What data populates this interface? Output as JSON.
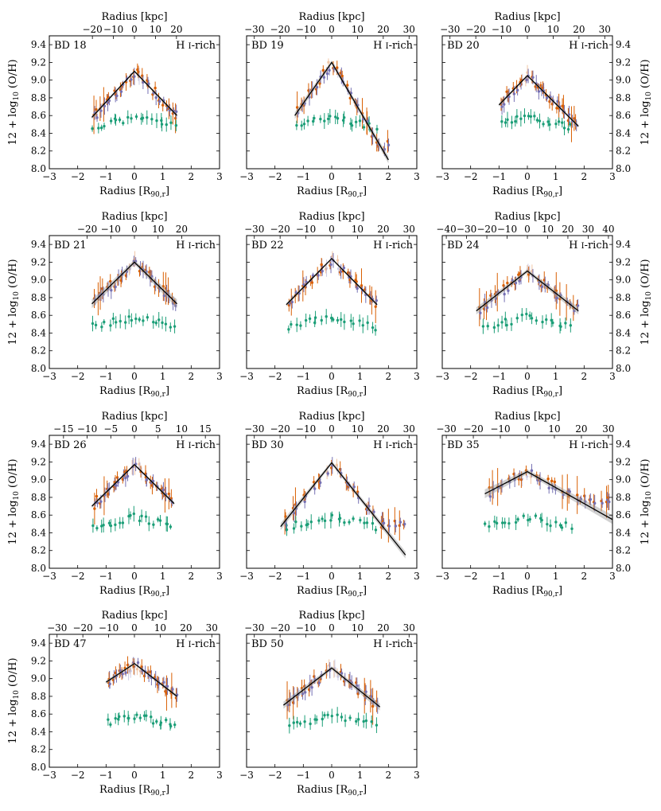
{
  "figure": {
    "top_axis_label": "Radius [kpc]",
    "bottom_axis_label": "Radius [R90,r]",
    "y_axis_label": "12 + log10 (O/H)",
    "hi_label": "H I-rich",
    "y_ticks": [
      8.0,
      8.2,
      8.4,
      8.6,
      8.8,
      9.0,
      9.2,
      9.4
    ],
    "x_ticks": [
      -3,
      -2,
      -1,
      0,
      1,
      2,
      3
    ],
    "colors": {
      "orange": "#d95f02",
      "purple": "#7570b3",
      "green": "#1b9e77",
      "fit": "#000000",
      "band": "#999999"
    }
  },
  "chart_data": [
    {
      "type": "scatter",
      "title": "BD 18",
      "tag": "H I-rich",
      "xlim": [
        -3,
        3
      ],
      "ylim": [
        8.0,
        9.5
      ],
      "kpc_per_unit": 13.5,
      "kpc_ticks": [
        -20,
        -10,
        0,
        10,
        20
      ],
      "fit": {
        "x": [
          -1.5,
          0,
          1.5
        ],
        "y": [
          8.58,
          9.1,
          8.6
        ]
      },
      "band": 0.01
    },
    {
      "type": "scatter",
      "title": "BD 19",
      "tag": "H I-rich",
      "xlim": [
        -3,
        3
      ],
      "ylim": [
        8.0,
        9.5
      ],
      "kpc_per_unit": 11.0,
      "kpc_ticks": [
        -30,
        -20,
        -10,
        0,
        10,
        20,
        30
      ],
      "fit": {
        "x": [
          -1.3,
          0,
          2.0
        ],
        "y": [
          8.6,
          9.2,
          8.1
        ]
      },
      "band": 0.02
    },
    {
      "type": "scatter",
      "title": "BD 20",
      "tag": "H I-rich",
      "xlim": [
        -3,
        3
      ],
      "ylim": [
        8.0,
        9.5
      ],
      "kpc_per_unit": 11.0,
      "kpc_ticks": [
        -30,
        -20,
        -10,
        0,
        10,
        20,
        30
      ],
      "fit": {
        "x": [
          -1.0,
          0,
          1.8
        ],
        "y": [
          8.72,
          9.05,
          8.48
        ]
      },
      "band": 0.01
    },
    {
      "type": "scatter",
      "title": "BD 21",
      "tag": "H I-rich",
      "xlim": [
        -3,
        3
      ],
      "ylim": [
        8.0,
        9.5
      ],
      "kpc_per_unit": 12.0,
      "kpc_ticks": [
        -20,
        -10,
        0,
        10,
        20
      ],
      "fit": {
        "x": [
          -1.5,
          0,
          1.5
        ],
        "y": [
          8.73,
          9.2,
          8.73
        ]
      },
      "band": 0.025
    },
    {
      "type": "scatter",
      "title": "BD 22",
      "tag": "H I-rich",
      "xlim": [
        -3,
        3
      ],
      "ylim": [
        8.0,
        9.5
      ],
      "kpc_per_unit": 11.0,
      "kpc_ticks": [
        -30,
        -20,
        -10,
        0,
        10,
        20,
        30
      ],
      "fit": {
        "x": [
          -1.6,
          0,
          1.6
        ],
        "y": [
          8.72,
          9.24,
          8.72
        ]
      },
      "band": 0.01
    },
    {
      "type": "scatter",
      "title": "BD 24",
      "tag": "H I-rich",
      "xlim": [
        -3,
        3
      ],
      "ylim": [
        8.0,
        9.5
      ],
      "kpc_per_unit": 14.0,
      "kpc_ticks": [
        -40,
        -30,
        -20,
        -10,
        0,
        10,
        20,
        30,
        40
      ],
      "fit": {
        "x": [
          -1.8,
          0,
          1.8
        ],
        "y": [
          8.65,
          9.1,
          8.65
        ]
      },
      "band": 0.02
    },
    {
      "type": "scatter",
      "title": "BD 26",
      "tag": "H I-rich",
      "xlim": [
        -3,
        3
      ],
      "ylim": [
        8.0,
        9.5
      ],
      "kpc_per_unit": 6.0,
      "kpc_ticks": [
        -15,
        -10,
        -5,
        0,
        5,
        10,
        15
      ],
      "fit": {
        "x": [
          -1.5,
          0,
          1.4
        ],
        "y": [
          8.7,
          9.17,
          8.73
        ]
      },
      "band": 0.01
    },
    {
      "type": "scatter",
      "title": "BD 30",
      "tag": "H I-rich",
      "xlim": [
        -3,
        3
      ],
      "ylim": [
        8.0,
        9.5
      ],
      "kpc_per_unit": 11.0,
      "kpc_ticks": [
        -30,
        -20,
        -10,
        0,
        10,
        20,
        30
      ],
      "fit": {
        "x": [
          -1.8,
          0,
          2.6
        ],
        "y": [
          8.47,
          9.19,
          8.15
        ]
      },
      "band": 0.02
    },
    {
      "type": "scatter",
      "title": "BD 35",
      "tag": "H I-rich",
      "xlim": [
        -3,
        3
      ],
      "ylim": [
        8.0,
        9.5
      ],
      "kpc_per_unit": 10.5,
      "kpc_ticks": [
        -30,
        -20,
        -10,
        0,
        10,
        20,
        30
      ],
      "fit": {
        "x": [
          -1.5,
          0,
          3.0
        ],
        "y": [
          8.84,
          9.09,
          8.55
        ]
      },
      "band": 0.025
    },
    {
      "type": "scatter",
      "title": "BD 47",
      "tag": "H I-rich",
      "xlim": [
        -3,
        3
      ],
      "ylim": [
        8.0,
        9.5
      ],
      "kpc_per_unit": 11.0,
      "kpc_ticks": [
        -30,
        -20,
        -10,
        0,
        10,
        20,
        30
      ],
      "fit": {
        "x": [
          -1.0,
          0,
          1.5
        ],
        "y": [
          8.96,
          9.17,
          8.8
        ]
      },
      "band": 0.01
    },
    {
      "type": "scatter",
      "title": "BD 50",
      "tag": "H I-rich",
      "xlim": [
        -3,
        3
      ],
      "ylim": [
        8.0,
        9.5
      ],
      "kpc_per_unit": 11.0,
      "kpc_ticks": [
        -30,
        -20,
        -10,
        0,
        10,
        20,
        30
      ],
      "fit": {
        "x": [
          -1.7,
          0,
          1.7
        ],
        "y": [
          8.7,
          9.12,
          8.68
        ]
      },
      "band": 0.02
    }
  ]
}
